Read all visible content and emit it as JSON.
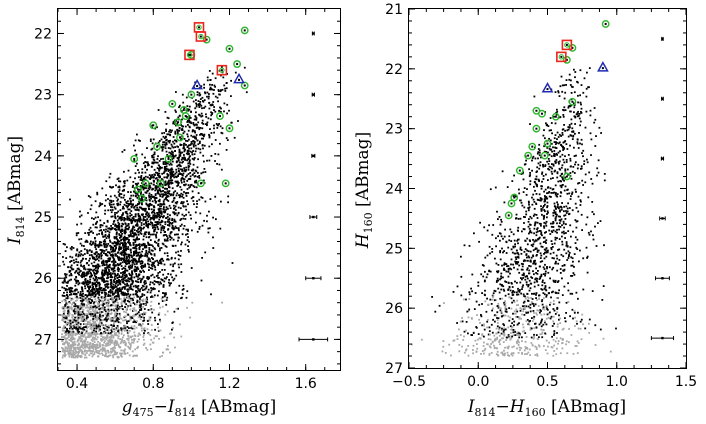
{
  "colors": {
    "star": "#000000",
    "faint_star": "#a8a8a8",
    "green_circle": "#2ab52a",
    "red_square": "#e8261c",
    "blue_triangle": "#1f2bb0"
  },
  "chart_data": [
    {
      "type": "scatter",
      "title": "",
      "xlabel": {
        "main": "g",
        "sub1": "475",
        "mid": "−I",
        "sub2": "814",
        "unit": " [ABmag]"
      },
      "ylabel": {
        "main": "I",
        "sub1": "814",
        "unit": " [ABmag]"
      },
      "xlim": [
        0.3,
        1.78
      ],
      "ylim": [
        27.5,
        21.6
      ],
      "y_inverted": true,
      "grid": false,
      "x_ticks": [
        0.4,
        0.8,
        1.2,
        1.6
      ],
      "x_tick_labels": [
        "0.4",
        "0.8",
        "1.2",
        "1.6"
      ],
      "y_ticks": [
        22,
        23,
        24,
        25,
        26,
        27
      ],
      "y_tick_labels": [
        "22",
        "23",
        "24",
        "25",
        "26",
        "27"
      ],
      "highlighted": {
        "green_circles": [
          [
            1.28,
            21.95
          ],
          [
            1.2,
            22.25
          ],
          [
            1.08,
            22.1
          ],
          [
            1.0,
            22.35
          ],
          [
            1.24,
            22.5
          ],
          [
            1.28,
            22.85
          ],
          [
            1.0,
            23.0
          ],
          [
            0.9,
            23.15
          ],
          [
            0.96,
            23.25
          ],
          [
            0.93,
            23.45
          ],
          [
            0.97,
            23.35
          ],
          [
            1.15,
            23.35
          ],
          [
            1.2,
            23.55
          ],
          [
            0.8,
            23.5
          ],
          [
            0.94,
            23.7
          ],
          [
            0.82,
            23.85
          ],
          [
            0.88,
            24.05
          ],
          [
            0.7,
            24.05
          ],
          [
            0.76,
            24.45
          ],
          [
            0.84,
            24.45
          ],
          [
            1.05,
            24.45
          ],
          [
            1.18,
            24.45
          ],
          [
            0.72,
            24.55
          ],
          [
            0.74,
            24.7
          ]
        ],
        "red_squares": [
          [
            1.04,
            21.9
          ],
          [
            1.05,
            22.05
          ],
          [
            0.99,
            22.35
          ],
          [
            1.16,
            22.6
          ]
        ],
        "blue_triangles": [
          [
            1.03,
            22.85
          ],
          [
            1.25,
            22.75
          ]
        ]
      },
      "error_bars": [
        {
          "y": 22.0,
          "xerr": 0.005
        },
        {
          "y": 23.0,
          "xerr": 0.006
        },
        {
          "y": 24.0,
          "xerr": 0.008
        },
        {
          "y": 25.0,
          "xerr": 0.018
        },
        {
          "y": 26.0,
          "xerr": 0.04
        },
        {
          "y": 27.0,
          "xerr": 0.075
        }
      ],
      "error_bar_x": 1.64
    },
    {
      "type": "scatter",
      "title": "",
      "xlabel": {
        "main": "I",
        "sub1": "814",
        "mid": "−H",
        "sub2": "160",
        "unit": " [ABmag]"
      },
      "ylabel": {
        "main": "H",
        "sub1": "160",
        "unit": " [ABmag]"
      },
      "xlim": [
        -0.5,
        1.5
      ],
      "ylim": [
        27.0,
        21.0
      ],
      "y_inverted": true,
      "grid": false,
      "x_ticks": [
        -0.5,
        0.0,
        0.5,
        1.0,
        1.5
      ],
      "x_tick_labels": [
        "−0.5",
        "0.0",
        "0.5",
        "1.0",
        "1.5"
      ],
      "y_ticks": [
        21,
        22,
        23,
        24,
        25,
        26,
        27
      ],
      "y_tick_labels": [
        "21",
        "22",
        "23",
        "24",
        "25",
        "26",
        "27"
      ],
      "highlighted": {
        "green_circles": [
          [
            0.92,
            21.25
          ],
          [
            0.68,
            21.65
          ],
          [
            0.64,
            21.85
          ],
          [
            0.68,
            22.55
          ],
          [
            0.42,
            22.7
          ],
          [
            0.46,
            22.75
          ],
          [
            0.56,
            22.8
          ],
          [
            0.42,
            23.0
          ],
          [
            0.39,
            23.3
          ],
          [
            0.5,
            23.25
          ],
          [
            0.36,
            23.45
          ],
          [
            0.48,
            23.45
          ],
          [
            0.3,
            23.7
          ],
          [
            0.64,
            23.8
          ],
          [
            0.26,
            24.15
          ],
          [
            0.24,
            24.25
          ],
          [
            0.22,
            24.45
          ]
        ],
        "red_squares": [
          [
            0.64,
            21.6
          ],
          [
            0.6,
            21.8
          ]
        ],
        "blue_triangles": [
          [
            0.9,
            21.98
          ],
          [
            0.5,
            22.33
          ]
        ]
      },
      "error_bars": [
        {
          "y": 21.5,
          "xerr": 0.005
        },
        {
          "y": 22.5,
          "xerr": 0.006
        },
        {
          "y": 23.5,
          "xerr": 0.008
        },
        {
          "y": 24.5,
          "xerr": 0.02
        },
        {
          "y": 25.5,
          "xerr": 0.05
        },
        {
          "y": 26.5,
          "xerr": 0.08
        }
      ],
      "error_bar_x": 1.33
    }
  ]
}
